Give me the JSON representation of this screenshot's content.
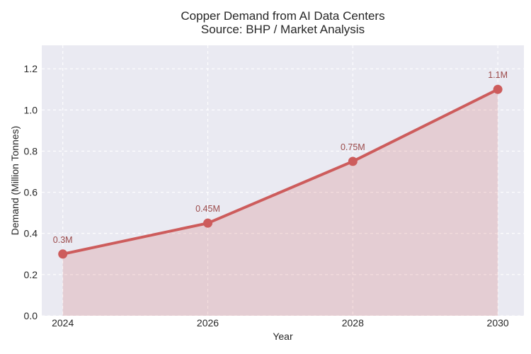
{
  "title": {
    "line1": "Copper Demand from AI Data Centers",
    "line2": "Source: BHP / Market Analysis"
  },
  "axes": {
    "xlabel": "Year",
    "ylabel": "Demand (Million Tonnes)"
  },
  "chart_data": {
    "type": "area",
    "title": "Copper Demand from AI Data Centers",
    "subtitle": "Source: BHP / Market Analysis",
    "xlabel": "Year",
    "ylabel": "Demand (Million Tonnes)",
    "x": [
      2024,
      2026,
      2028,
      2030
    ],
    "values": [
      0.3,
      0.45,
      0.75,
      1.1
    ],
    "point_labels": [
      "0.3M",
      "0.45M",
      "0.75M",
      "1.1M"
    ],
    "xticks": [
      2024,
      2026,
      2028,
      2030
    ],
    "xtick_labels": [
      "2024",
      "2026",
      "2028",
      "2030"
    ],
    "yticks": [
      0.0,
      0.2,
      0.4,
      0.6,
      0.8,
      1.0,
      1.2
    ],
    "ytick_labels": [
      "0.0",
      "0.2",
      "0.4",
      "0.6",
      "0.8",
      "1.0",
      "1.2"
    ],
    "xlim": [
      2023.71,
      2030.36
    ],
    "ylim": [
      0,
      1.314
    ],
    "grid": true,
    "grid_style": "dashed",
    "legend_position": "none"
  },
  "colors": {
    "line": "#cd5c5c",
    "marker": "#cd5c5c",
    "fill": "rgba(205,92,92,0.2)",
    "annotation": "#9b4a4a",
    "plot_background": "#eaeaf2",
    "gridline": "#ffffff",
    "text": "#262626",
    "figure_background": "#ffffff"
  }
}
